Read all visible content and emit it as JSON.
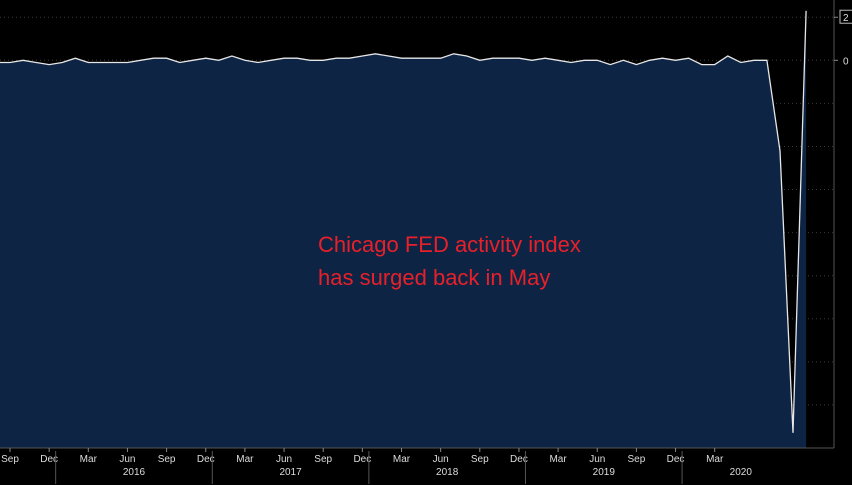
{
  "chart_data": {
    "type": "area",
    "title": "",
    "xlabel": "",
    "ylabel": "",
    "ylim": [
      -18,
      2.8
    ],
    "y_ticks": [
      2,
      0
    ],
    "x_start": "2015-09",
    "x_tick_labels": [
      "Sep",
      "Dec",
      "Mar",
      "Jun",
      "Sep",
      "Dec",
      "Mar",
      "Jun",
      "Sep",
      "Dec",
      "Mar",
      "Jun",
      "Sep",
      "Dec",
      "Mar",
      "Jun",
      "Sep",
      "Dec",
      "Mar"
    ],
    "year_labels": [
      "2016",
      "2017",
      "2018",
      "2019",
      "2020"
    ],
    "grid": true,
    "colors": {
      "fill": "#0d2444",
      "line": "#e6e6e6",
      "background": "#000000",
      "grid": "#3a3a3a",
      "annotation": "#e8202a"
    },
    "series": [
      {
        "values": [
          -0.1,
          0.0,
          -0.1,
          -0.2,
          -0.1,
          0.1,
          -0.1,
          -0.1,
          -0.1,
          -0.1,
          0.0,
          0.1,
          0.1,
          -0.1,
          0.0,
          0.1,
          0.0,
          0.2,
          0.0,
          -0.1,
          0.0,
          0.1,
          0.1,
          0.0,
          0.0,
          0.1,
          0.1,
          0.2,
          0.3,
          0.2,
          0.1,
          0.1,
          0.1,
          0.1,
          0.3,
          0.2,
          0.0,
          0.1,
          0.1,
          0.1,
          0.0,
          0.1,
          0.0,
          -0.1,
          0.0,
          0.0,
          -0.2,
          0.0,
          -0.2,
          0.0,
          0.1,
          0.0,
          0.1,
          -0.2,
          -0.2,
          0.2,
          -0.1,
          0.0,
          0.0,
          -4.2,
          -17.3,
          2.3
        ]
      }
    ]
  },
  "annotation": {
    "line1": "Chicago FED activity index",
    "line2": "has surged back in May"
  }
}
